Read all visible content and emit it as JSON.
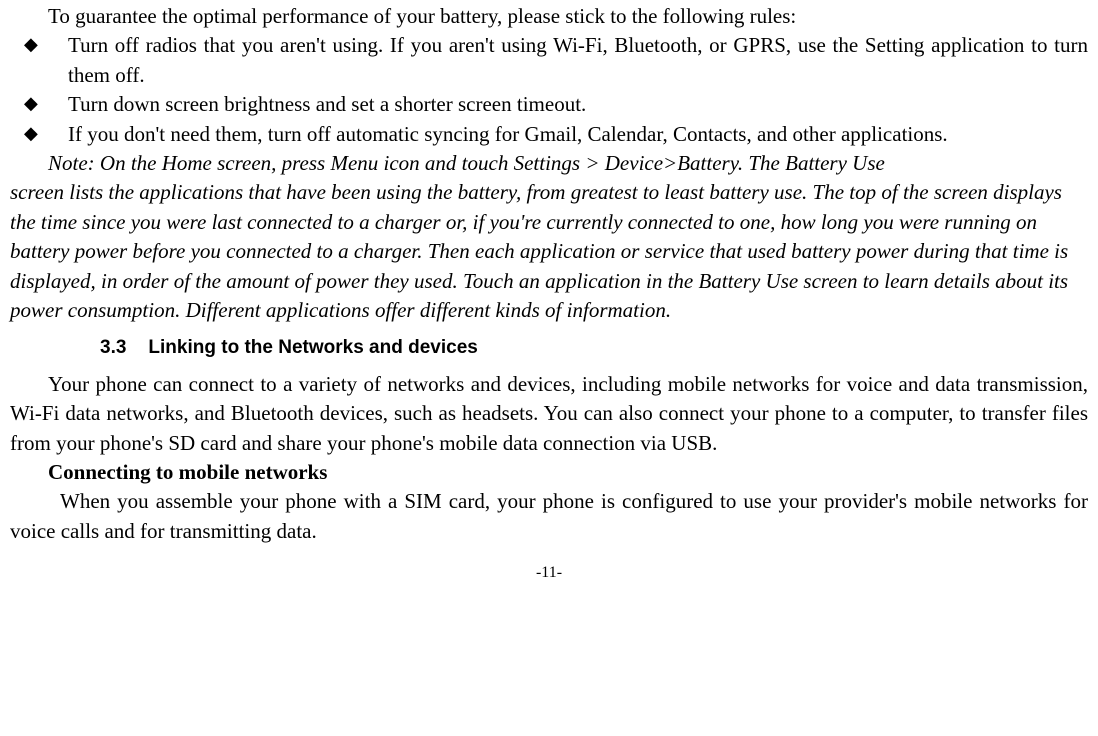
{
  "intro": "To guarantee the optimal performance of your battery, please stick to the following rules:",
  "bullets": [
    "Turn off radios that you aren't using. If you aren't using Wi-Fi, Bluetooth, or GPRS, use the Setting application to turn them off.",
    "Turn down screen brightness and set a shorter screen timeout.",
    "If you don't need them, turn off automatic syncing for Gmail, Calendar, Contacts, and other applications."
  ],
  "note_first": "Note: On the Home screen, press Menu icon and touch Settings > Device>Battery. The Battery Use",
  "note_rest": "screen lists the applications that have been using the battery, from greatest to least battery use. The top of the screen displays the time since you were last connected to a charger or, if you're currently connected to one, how long you were running on battery power before you connected to a charger. Then each application or service that used battery power during that time is displayed, in order of the amount of power they used. Touch an application in the Battery Use screen to learn details about its power consumption. Different applications offer different kinds of information.",
  "section_num": "3.3",
  "section_title": "Linking to the Networks and devices",
  "para1": "Your phone can connect to a variety of networks and devices, including mobile networks for voice and data transmission, Wi-Fi data networks, and Bluetooth devices, such as headsets. You can also connect your phone to a computer, to transfer files from your phone's SD card and share your phone's mobile data connection via USB.",
  "subhead": "Connecting to mobile networks",
  "para2": "When you assemble your phone with a SIM card, your phone is configured to use your provider's mobile networks for voice calls and for transmitting data.",
  "page_number": "-11-",
  "bullet_marker": "◆"
}
